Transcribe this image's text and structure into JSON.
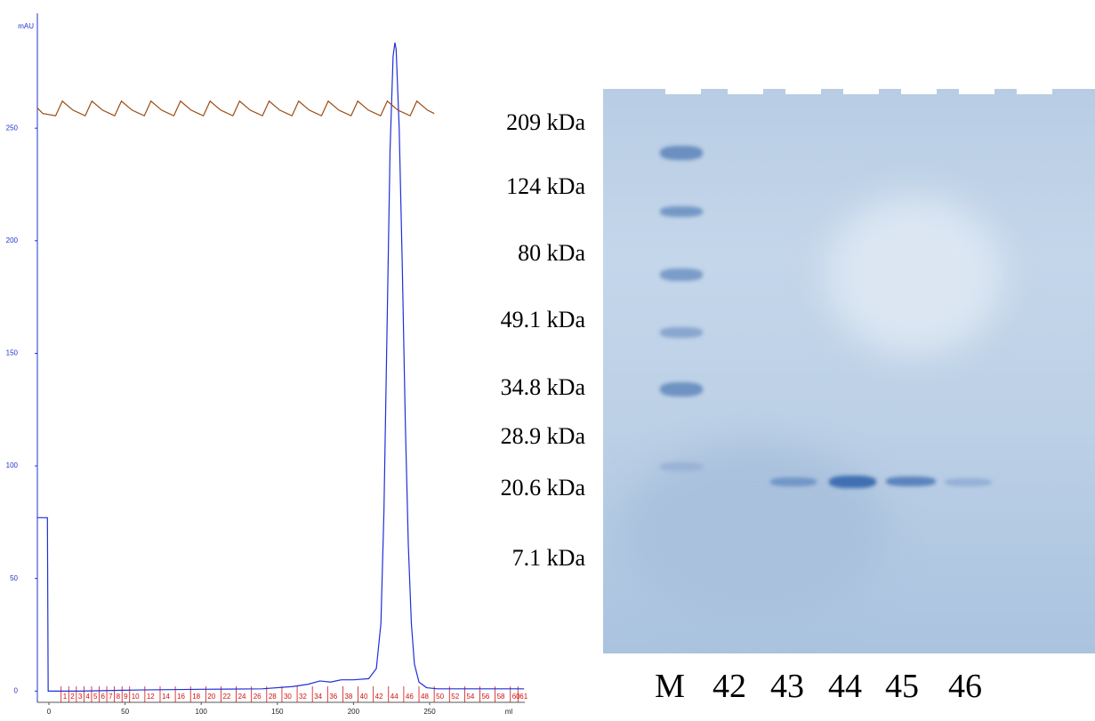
{
  "chart_data": {
    "type": "line",
    "ylabel": "mAU",
    "xlabel": "ml",
    "xlim": [
      -7.6,
      312.5
    ],
    "ylim": [
      -5,
      301
    ],
    "xticks": [
      0,
      50,
      100,
      150,
      200,
      250
    ],
    "yticks": [
      0,
      50,
      100,
      150,
      200,
      250
    ],
    "series": [
      {
        "color": "#1f2fd8",
        "x": [
          -7.6,
          -1,
          -0.5,
          20,
          60,
          100,
          140,
          160,
          170,
          178,
          185,
          192,
          200,
          210,
          215,
          218,
          220,
          222,
          224,
          226,
          227.2,
          228,
          230,
          232,
          234,
          236,
          238,
          240,
          243,
          248,
          255,
          270,
          312
        ],
        "values": [
          77,
          77,
          0,
          0,
          0.5,
          0.8,
          1,
          2,
          3,
          4.5,
          4,
          5,
          5,
          5.5,
          10,
          30,
          80,
          160,
          240,
          282,
          288,
          285,
          250,
          190,
          120,
          65,
          30,
          12,
          4,
          1.5,
          1,
          1,
          1
        ]
      },
      {
        "color": "#9a4a12",
        "x": [
          -7.6,
          -4,
          4.4,
          8.8,
          15.8,
          23.8,
          28.2,
          35.2,
          43.2,
          47.6,
          54.6,
          62.6,
          67,
          74,
          82,
          86.4,
          93.4,
          101.4,
          105.8,
          112.8,
          120.8,
          125.2,
          132.2,
          140.2,
          144.6,
          151.6,
          159.6,
          164,
          171,
          179,
          183.4,
          190.4,
          198.4,
          202.8,
          209.8,
          217.8,
          222.2,
          229.2,
          237.2,
          241.6,
          248.6,
          253
        ],
        "values": [
          259,
          256.5,
          255.5,
          262,
          258,
          255.5,
          262,
          258,
          255.5,
          262,
          258,
          255.5,
          262,
          258,
          255.5,
          262,
          258,
          255.5,
          262,
          258,
          255.5,
          262,
          258,
          255.5,
          262,
          258,
          255.5,
          262,
          258,
          255.5,
          262,
          258,
          255.5,
          262,
          258,
          255.5,
          262,
          258,
          255.5,
          262,
          258,
          256.5
        ]
      }
    ],
    "fractions": [
      {
        "label": 1,
        "x": 8
      },
      {
        "label": 2,
        "x": 13
      },
      {
        "label": 3,
        "x": 18
      },
      {
        "label": 4,
        "x": 23
      },
      {
        "label": 5,
        "x": 28
      },
      {
        "label": 6,
        "x": 33
      },
      {
        "label": 7,
        "x": 38
      },
      {
        "label": 8,
        "x": 43
      },
      {
        "label": 9,
        "x": 48
      },
      {
        "label": 10,
        "x": 53
      },
      {
        "label": 12,
        "x": 63
      },
      {
        "label": 14,
        "x": 73
      },
      {
        "label": 16,
        "x": 83
      },
      {
        "label": 18,
        "x": 93
      },
      {
        "label": 20,
        "x": 103
      },
      {
        "label": 22,
        "x": 113
      },
      {
        "label": 24,
        "x": 123
      },
      {
        "label": 26,
        "x": 133
      },
      {
        "label": 28,
        "x": 143
      },
      {
        "label": 30,
        "x": 153
      },
      {
        "label": 32,
        "x": 163
      },
      {
        "label": 34,
        "x": 173
      },
      {
        "label": 36,
        "x": 183
      },
      {
        "label": 38,
        "x": 193
      },
      {
        "label": 40,
        "x": 203
      },
      {
        "label": 42,
        "x": 213
      },
      {
        "label": 44,
        "x": 223
      },
      {
        "label": 46,
        "x": 233
      },
      {
        "label": 48,
        "x": 243
      },
      {
        "label": 50,
        "x": 253
      },
      {
        "label": 52,
        "x": 263
      },
      {
        "label": 54,
        "x": 273
      },
      {
        "label": 56,
        "x": 283
      },
      {
        "label": 58,
        "x": 293
      },
      {
        "label": 60,
        "x": 303
      },
      {
        "label": 61,
        "x": 308
      }
    ]
  },
  "gel": {
    "markers": [
      "209 kDa",
      "124 kDa",
      "80 kDa",
      "49.1 kDa",
      "34.8 kDa",
      "28.9 kDa",
      "20.6 kDa",
      "7.1 kDa"
    ],
    "lanes": [
      "M",
      "42",
      "43",
      "44",
      "45",
      "46"
    ]
  }
}
